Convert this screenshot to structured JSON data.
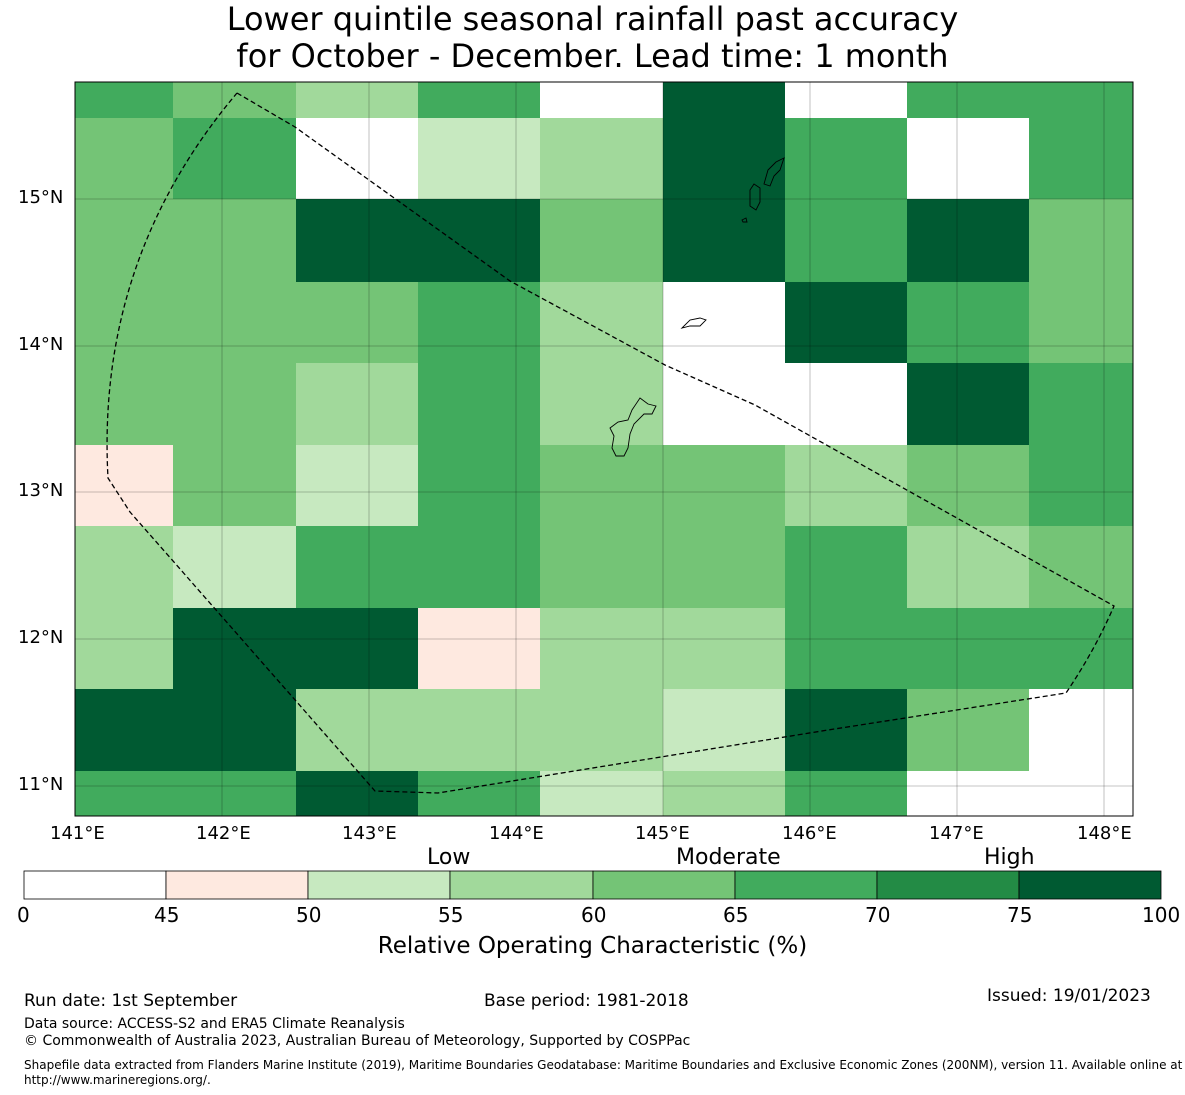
{
  "title": {
    "line1": "Lower quintile seasonal rainfall past accuracy",
    "line2": "for October - December. Lead time: 1 month"
  },
  "map": {
    "lat_ticks": [
      "15°N",
      "14°N",
      "13°N",
      "12°N",
      "11°N"
    ],
    "lon_ticks": [
      "141°E",
      "142°E",
      "143°E",
      "144°E",
      "145°E",
      "146°E",
      "147°E",
      "148°E"
    ],
    "grid": [
      [
        4,
        3,
        2,
        4,
        7,
        6,
        7,
        4,
        4
      ],
      [
        3,
        4,
        7,
        1,
        2,
        6,
        4,
        7,
        4
      ],
      [
        3,
        3,
        6,
        6,
        3,
        6,
        4,
        6,
        3
      ],
      [
        3,
        3,
        3,
        4,
        2,
        7,
        6,
        4,
        3
      ],
      [
        3,
        3,
        2,
        4,
        2,
        7,
        7,
        6,
        4
      ],
      [
        0,
        3,
        1,
        4,
        3,
        3,
        2,
        3,
        4
      ],
      [
        2,
        1,
        4,
        4,
        3,
        3,
        4,
        2,
        3
      ],
      [
        2,
        6,
        6,
        0,
        2,
        2,
        4,
        4,
        4
      ],
      [
        6,
        6,
        2,
        2,
        2,
        1,
        6,
        3,
        7
      ],
      [
        4,
        4,
        6,
        4,
        1,
        2,
        4,
        7,
        7
      ]
    ],
    "class_colors": [
      "#fee9e0",
      "#c7e9c0",
      "#a1d99b",
      "#74c476",
      "#41ab5d",
      "#238b45",
      "#005a32",
      "#ffffff"
    ]
  },
  "colorbar": {
    "categories": [
      "Low",
      "Moderate",
      "High"
    ],
    "ticks": [
      "0",
      "45",
      "50",
      "55",
      "60",
      "65",
      "70",
      "75",
      "100"
    ],
    "colors": [
      "#ffffff",
      "#fee9e0",
      "#c7e9c0",
      "#a1d99b",
      "#74c476",
      "#41ab5d",
      "#238b45",
      "#005a32"
    ],
    "label": "Relative Operating Characteristic (%)"
  },
  "footer": {
    "run_date": "Run date: 1st September",
    "base_period": "Base period: 1981-2018",
    "issued": "Issued: 19/01/2023",
    "data_source": "Data source: ACCESS-S2 and ERA5 Climate Reanalysis",
    "copyright": "© Commonwealth of Australia 2023, Australian Bureau of Meteorology, Supported by COSPPac",
    "shapefile": "Shapefile data extracted from Flanders Marine Institute (2019), Maritime Boundaries Geodatabase: Maritime Boundaries and Exclusive Economic Zones (200NM), version 11. Available online at http://www.marineregions.org/."
  }
}
